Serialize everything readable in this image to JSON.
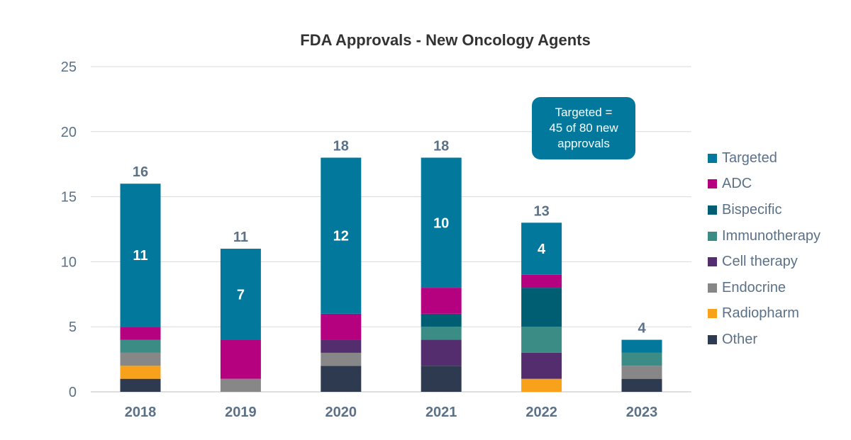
{
  "chart_data": {
    "type": "bar",
    "stacked": true,
    "title": "FDA Approvals - New Oncology Agents",
    "xlabel": "",
    "ylabel": "",
    "ylim": [
      0,
      25
    ],
    "yticks": [
      "0",
      "5",
      "10",
      "15",
      "20",
      "25"
    ],
    "grid": true,
    "legend_position": "right",
    "categories": [
      "2018",
      "2019",
      "2020",
      "2021",
      "2022",
      "2023"
    ],
    "totals": [
      16,
      11,
      18,
      18,
      13,
      4
    ],
    "series": [
      {
        "name": "Other",
        "color": "#2e3a4f",
        "values": [
          1,
          0,
          2,
          2,
          0,
          1
        ]
      },
      {
        "name": "Radiopharm",
        "color": "#f8a11b",
        "values": [
          1,
          0,
          0,
          0,
          1,
          0
        ]
      },
      {
        "name": "Endocrine",
        "color": "#878787",
        "values": [
          1,
          1,
          1,
          0,
          0,
          1
        ]
      },
      {
        "name": "Cell therapy",
        "color": "#532d6d",
        "values": [
          0,
          0,
          1,
          2,
          2,
          0
        ]
      },
      {
        "name": "Immunotherapy",
        "color": "#3b8c85",
        "values": [
          1,
          0,
          0,
          1,
          2,
          1
        ]
      },
      {
        "name": "Bispecific",
        "color": "#005e73",
        "values": [
          0,
          0,
          0,
          1,
          3,
          0
        ]
      },
      {
        "name": "ADC",
        "color": "#b5007f",
        "values": [
          1,
          3,
          2,
          2,
          1,
          0
        ]
      },
      {
        "name": "Targeted",
        "color": "#03789d",
        "values": [
          11,
          7,
          12,
          10,
          4,
          1
        ]
      }
    ],
    "segment_labels": {
      "series": "Targeted",
      "labels": [
        "11",
        "7",
        "12",
        "10",
        "4",
        ""
      ]
    },
    "annotation": "Targeted =\n45 of 80 new\napprovals",
    "legend_order": [
      "Targeted",
      "ADC",
      "Bispecific",
      "Immunotherapy",
      "Cell therapy",
      "Endocrine",
      "Radiopharm",
      "Other"
    ]
  },
  "colors": {
    "title": "#333333",
    "axis_text": "#5b7188",
    "gridline": "#d9d9d9",
    "annotation_bg": "#03789d"
  }
}
